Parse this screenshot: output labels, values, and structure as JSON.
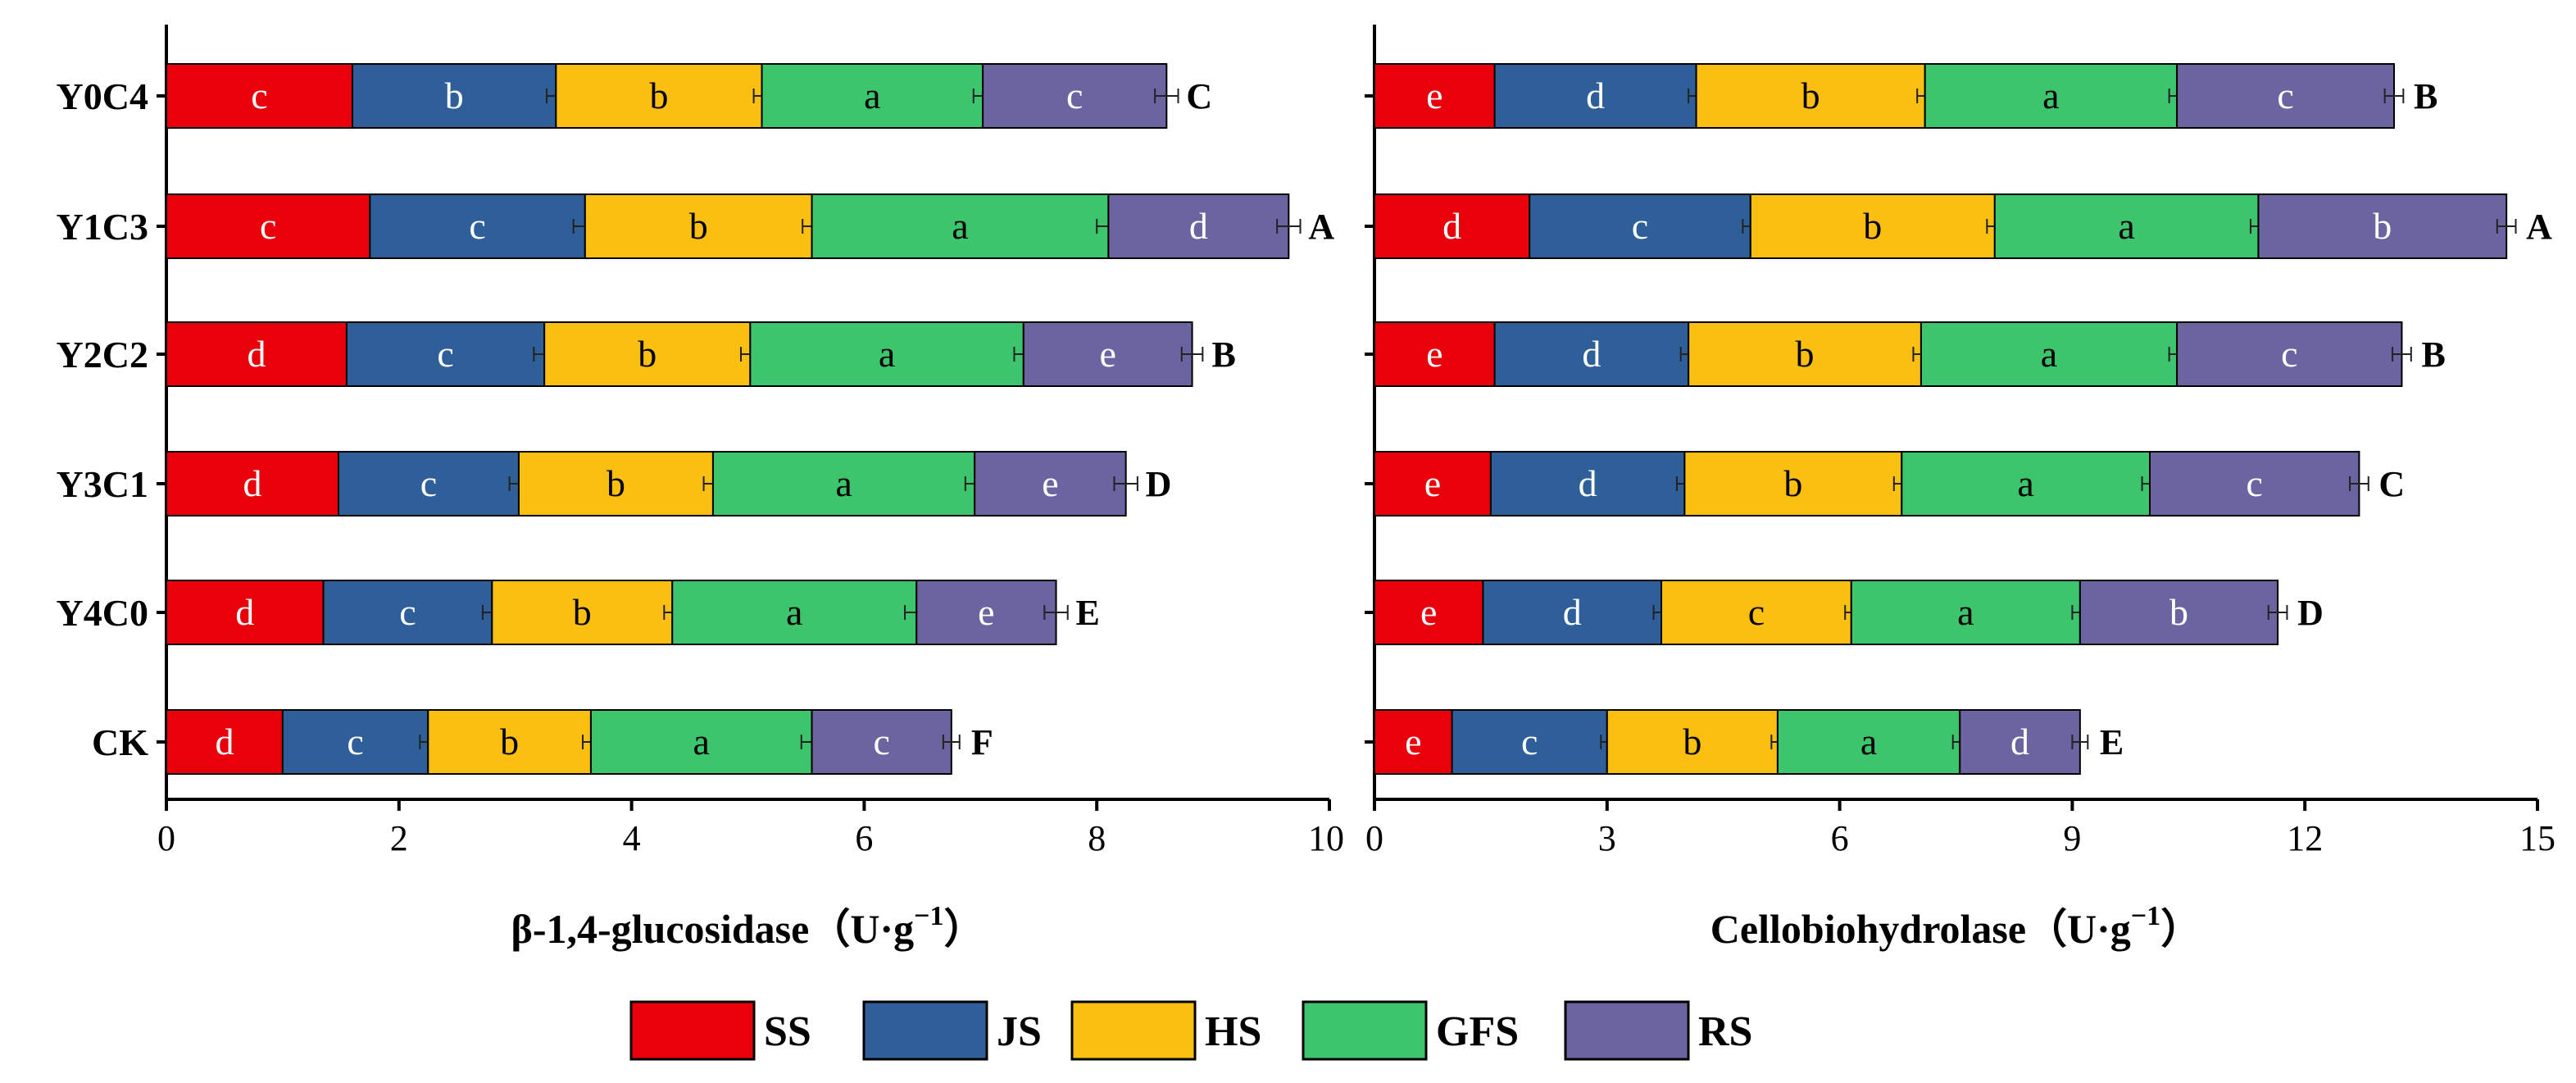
{
  "colors": {
    "SS": "#e8000b",
    "JS": "#2f5f99",
    "HS": "#fbbf12",
    "GFS": "#3cc56c",
    "RS": "#6a64a0"
  },
  "legend": [
    "SS",
    "JS",
    "HS",
    "GFS",
    "RS"
  ],
  "chart_data": [
    {
      "type": "bar",
      "orientation": "horizontal",
      "stacked": true,
      "xlabel": "β-1,4-glucosidase（U·g",
      "xlabel_sup": "−1",
      "xlabel_close": "）",
      "xlim": [
        0,
        10
      ],
      "xticks": [
        "0",
        "2",
        "4",
        "6",
        "8",
        "10"
      ],
      "categories": [
        "Y0C4",
        "Y1C3",
        "Y2C2",
        "Y3C1",
        "Y4C0",
        "CK"
      ],
      "series": [
        {
          "name": "SS",
          "values": [
            1.6,
            1.75,
            1.55,
            1.48,
            1.35,
            1.0
          ],
          "errors": [
            0,
            0,
            0,
            0,
            0,
            0
          ],
          "letters": [
            "c",
            "c",
            "d",
            "d",
            "d",
            "d"
          ]
        },
        {
          "name": "JS",
          "values": [
            1.75,
            1.85,
            1.7,
            1.55,
            1.45,
            1.25
          ],
          "errors": [
            0.08,
            0.1,
            0.09,
            0.08,
            0.08,
            0.07
          ],
          "letters": [
            "b",
            "c",
            "c",
            "c",
            "c",
            "c"
          ]
        },
        {
          "name": "HS",
          "values": [
            1.77,
            1.95,
            1.77,
            1.67,
            1.55,
            1.4
          ],
          "errors": [
            0.07,
            0.08,
            0.08,
            0.08,
            0.07,
            0.07
          ],
          "letters": [
            "b",
            "b",
            "b",
            "b",
            "b",
            "b"
          ]
        },
        {
          "name": "GFS",
          "values": [
            1.9,
            2.55,
            2.35,
            2.25,
            2.1,
            1.9
          ],
          "errors": [
            0.08,
            0.1,
            0.08,
            0.08,
            0.1,
            0.09
          ],
          "letters": [
            "a",
            "a",
            "a",
            "a",
            "a",
            "a"
          ]
        },
        {
          "name": "RS",
          "values": [
            1.58,
            1.55,
            1.45,
            1.3,
            1.2,
            1.2
          ],
          "errors": [
            0.1,
            0.1,
            0.09,
            0.1,
            0.1,
            0.07
          ],
          "letters": [
            "c",
            "d",
            "e",
            "e",
            "e",
            "c"
          ]
        }
      ],
      "totals": [
        8.6,
        9.65,
        8.82,
        8.25,
        7.65,
        6.75
      ],
      "total_letters": [
        "C",
        "A",
        "B",
        "D",
        "E",
        "F"
      ]
    },
    {
      "type": "bar",
      "orientation": "horizontal",
      "stacked": true,
      "xlabel": "Cellobiohydrolase（U·g",
      "xlabel_sup": "−1",
      "xlabel_close": "）",
      "xlim": [
        0,
        15
      ],
      "xticks": [
        "0",
        "3",
        "6",
        "9",
        "12",
        "15"
      ],
      "categories": [
        "Y0C4",
        "Y1C3",
        "Y2C2",
        "Y3C1",
        "Y4C0",
        "CK"
      ],
      "series": [
        {
          "name": "SS",
          "values": [
            1.55,
            2.0,
            1.55,
            1.5,
            1.4,
            1.0
          ],
          "errors": [
            0,
            0,
            0,
            0,
            0,
            0
          ],
          "letters": [
            "e",
            "d",
            "e",
            "e",
            "e",
            "e"
          ]
        },
        {
          "name": "JS",
          "values": [
            2.6,
            2.85,
            2.5,
            2.5,
            2.3,
            2.0
          ],
          "errors": [
            0.1,
            0.1,
            0.1,
            0.1,
            0.1,
            0.08
          ],
          "letters": [
            "d",
            "c",
            "d",
            "d",
            "d",
            "c"
          ]
        },
        {
          "name": "HS",
          "values": [
            2.95,
            3.15,
            3.0,
            2.8,
            2.45,
            2.2
          ],
          "errors": [
            0.1,
            0.1,
            0.1,
            0.1,
            0.08,
            0.08
          ],
          "letters": [
            "b",
            "b",
            "b",
            "b",
            "c",
            "b"
          ]
        },
        {
          "name": "GFS",
          "values": [
            3.25,
            3.4,
            3.3,
            3.2,
            2.95,
            2.35
          ],
          "errors": [
            0.1,
            0.1,
            0.1,
            0.1,
            0.1,
            0.09
          ],
          "letters": [
            "a",
            "a",
            "a",
            "a",
            "a",
            "a"
          ]
        },
        {
          "name": "RS",
          "values": [
            2.8,
            3.2,
            2.9,
            2.7,
            2.55,
            1.55
          ],
          "errors": [
            0.12,
            0.12,
            0.12,
            0.12,
            0.12,
            0.1
          ],
          "letters": [
            "c",
            "b",
            "c",
            "c",
            "b",
            "d"
          ]
        }
      ],
      "totals": [
        13.15,
        14.6,
        13.25,
        12.7,
        11.65,
        9.1
      ],
      "total_letters": [
        "B",
        "A",
        "B",
        "C",
        "D",
        "E"
      ]
    }
  ]
}
